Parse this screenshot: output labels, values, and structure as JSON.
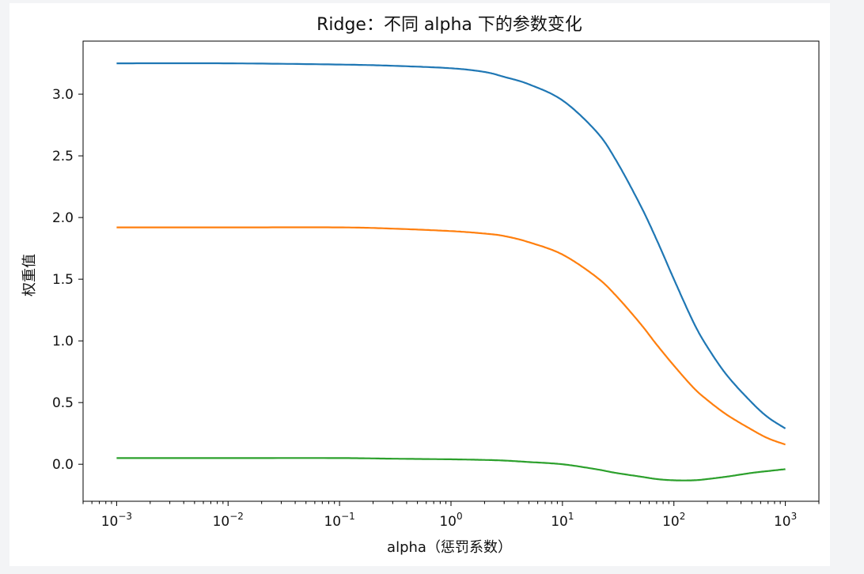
{
  "chart_data": {
    "type": "line",
    "title": "Ridge：不同 alpha 下的参数变化",
    "xlabel": "alpha（惩罚系数）",
    "ylabel": "权重值",
    "xscale": "log",
    "xlim": [
      0.0005,
      2000
    ],
    "ylim": [
      -0.3,
      3.43
    ],
    "grid": false,
    "x_tick_labels": [
      {
        "value": 0.001,
        "base": "10",
        "exp": "−3"
      },
      {
        "value": 0.01,
        "base": "10",
        "exp": "−2"
      },
      {
        "value": 0.1,
        "base": "10",
        "exp": "−1"
      },
      {
        "value": 1,
        "base": "10",
        "exp": "0"
      },
      {
        "value": 10,
        "base": "10",
        "exp": "1"
      },
      {
        "value": 100,
        "base": "10",
        "exp": "2"
      },
      {
        "value": 1000,
        "base": "10",
        "exp": "3"
      }
    ],
    "y_tick_labels": [
      "0.0",
      "0.5",
      "1.0",
      "1.5",
      "2.0",
      "2.5",
      "3.0"
    ],
    "y_ticks": [
      0.0,
      0.5,
      1.0,
      1.5,
      2.0,
      2.5,
      3.0
    ],
    "x": [
      0.001,
      0.01,
      0.1,
      0.3,
      1,
      2,
      3,
      5,
      10,
      20,
      30,
      50,
      70,
      100,
      150,
      200,
      300,
      500,
      700,
      1000
    ],
    "series": [
      {
        "color": "#1f77b4",
        "values": [
          3.25,
          3.25,
          3.24,
          3.23,
          3.21,
          3.18,
          3.14,
          3.08,
          2.95,
          2.7,
          2.47,
          2.1,
          1.82,
          1.5,
          1.15,
          0.95,
          0.72,
          0.5,
          0.38,
          0.29
        ]
      },
      {
        "color": "#ff7f0e",
        "values": [
          1.92,
          1.92,
          1.92,
          1.91,
          1.89,
          1.87,
          1.85,
          1.8,
          1.7,
          1.52,
          1.37,
          1.14,
          0.97,
          0.8,
          0.62,
          0.52,
          0.4,
          0.28,
          0.21,
          0.16
        ]
      },
      {
        "color": "#2ca02c",
        "values": [
          0.05,
          0.05,
          0.05,
          0.045,
          0.04,
          0.035,
          0.03,
          0.018,
          0.0,
          -0.04,
          -0.07,
          -0.1,
          -0.12,
          -0.13,
          -0.13,
          -0.12,
          -0.1,
          -0.07,
          -0.055,
          -0.04
        ]
      }
    ]
  }
}
